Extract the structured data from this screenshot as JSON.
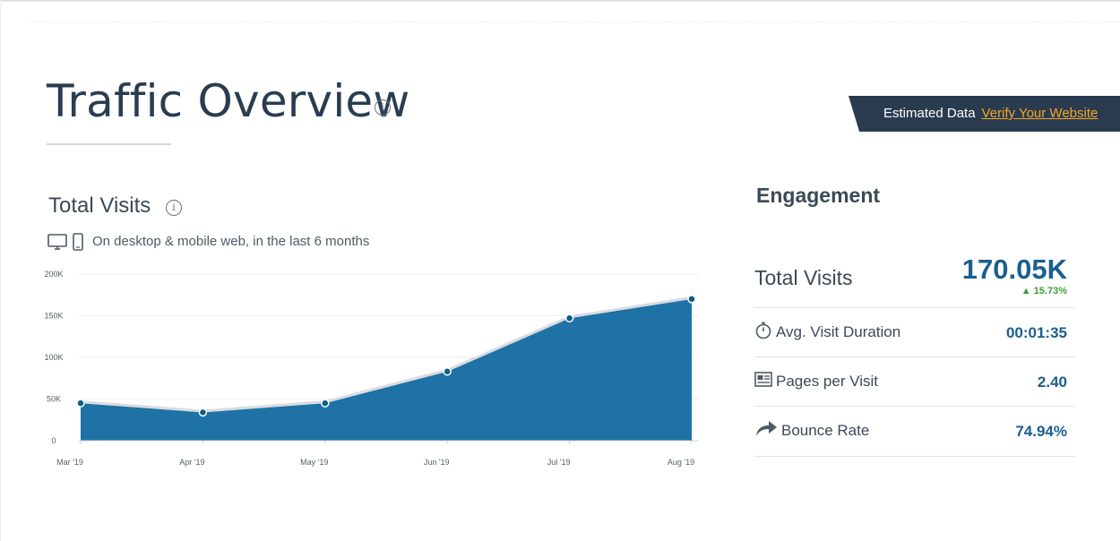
{
  "page": {
    "title": "Traffic Overview",
    "info_symbol": "i"
  },
  "banner": {
    "label": "Estimated Data",
    "link": "Verify Your Website"
  },
  "total_visits_section": {
    "title": "Total Visits",
    "subtitle": "On desktop & mobile web, in the last 6 months"
  },
  "chart_data": {
    "type": "area",
    "categories": [
      "Mar '19",
      "Apr '19",
      "May '19",
      "Jun '19",
      "Jul '19",
      "Aug '19"
    ],
    "values": [
      45000,
      34000,
      45000,
      83000,
      147000,
      170050
    ],
    "y_ticks": [
      0,
      50000,
      100000,
      150000,
      200000
    ],
    "y_tick_labels": [
      "0",
      "50K",
      "100K",
      "150K",
      "200K"
    ],
    "ylim": [
      0,
      200000
    ],
    "grid": true,
    "fill_color": "#1f72a6",
    "marker_color": "#0f5e84"
  },
  "engagement": {
    "title": "Engagement",
    "total_visits": {
      "label": "Total Visits",
      "value": "170.05K",
      "change": "15.73%"
    },
    "metrics": [
      {
        "label": "Avg. Visit Duration",
        "value": "00:01:35",
        "icon": "stopwatch-icon"
      },
      {
        "label": "Pages per Visit",
        "value": "2.40",
        "icon": "pages-icon"
      },
      {
        "label": "Bounce Rate",
        "value": "74.94%",
        "icon": "bounce-arrow-icon"
      }
    ]
  },
  "colors": {
    "accent": "#1a5f8e",
    "positive": "#3f9e38",
    "banner_bg": "#2a3b50",
    "link": "#f5a623"
  }
}
